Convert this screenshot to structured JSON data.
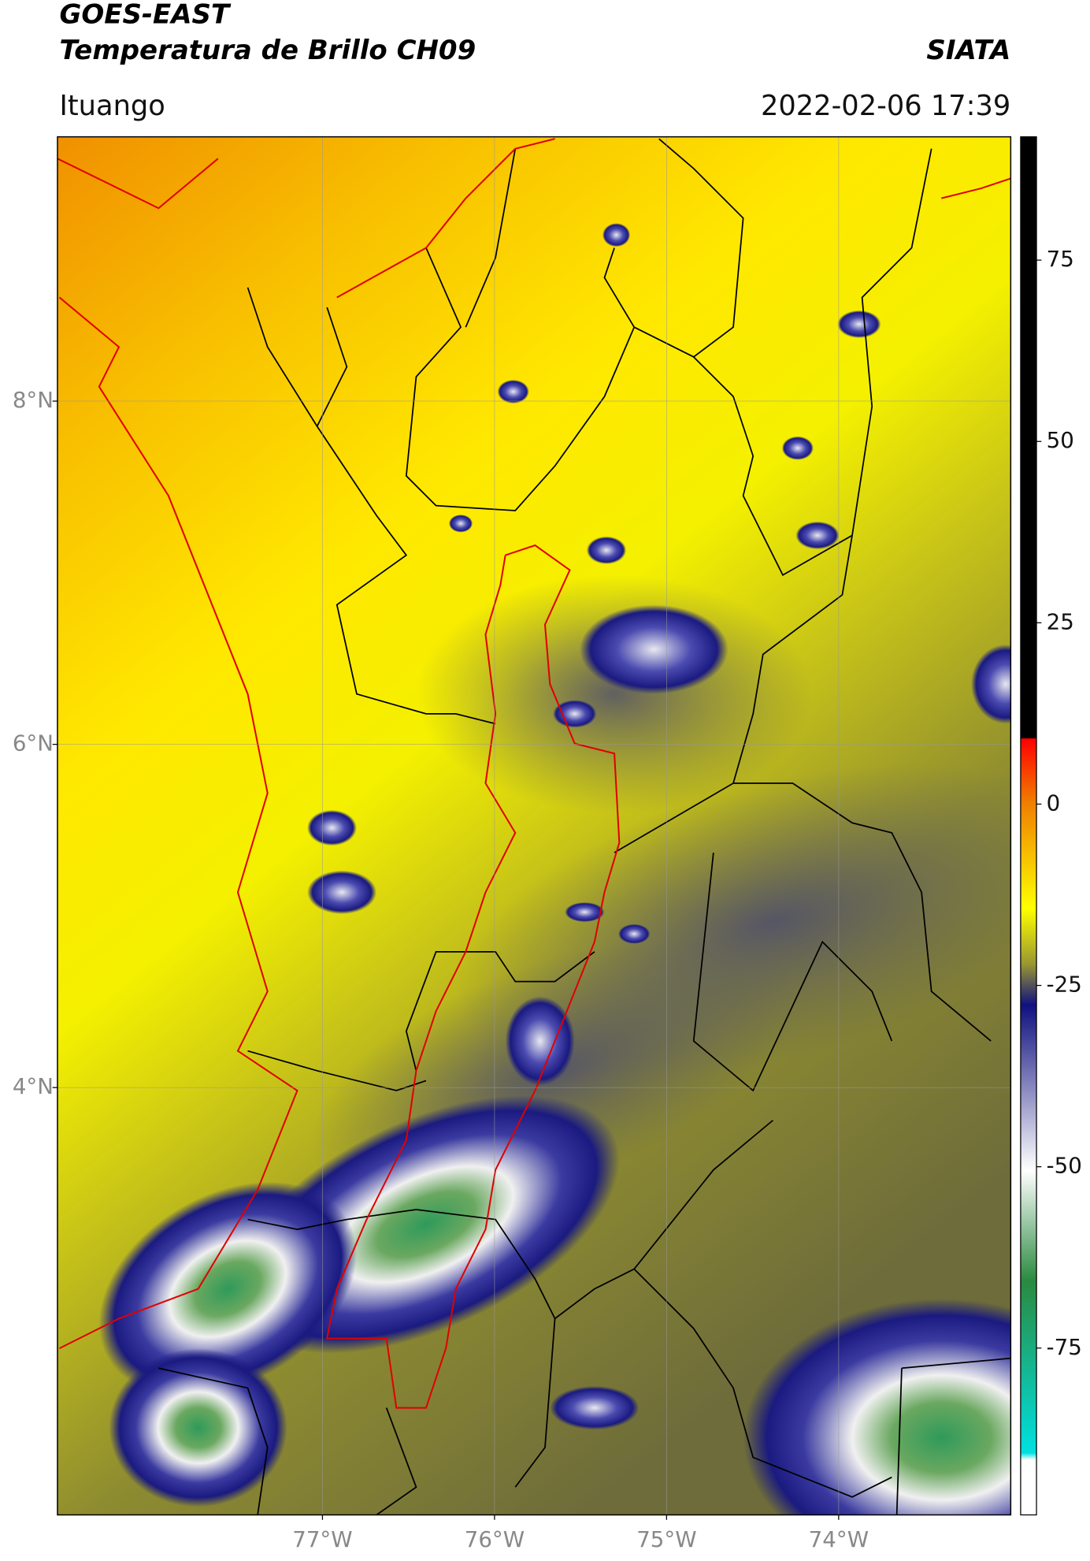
{
  "header": {
    "title": "GOES-EAST",
    "subtitle": "Temperatura de Brillo CH09",
    "source": "SIATA",
    "location": "Ituango",
    "datetime": "2022-02-06 17:39"
  },
  "map": {
    "type": "map",
    "xlim": [
      -78.54,
      -73.0
    ],
    "ylim": [
      1.51,
      9.54
    ],
    "xticks": [
      {
        "value": -77,
        "label": "77°W"
      },
      {
        "value": -76,
        "label": "76°W"
      },
      {
        "value": -75,
        "label": "75°W"
      },
      {
        "value": -74,
        "label": "74°W"
      }
    ],
    "yticks": [
      {
        "value": 8,
        "label": "8°N"
      },
      {
        "value": 6,
        "label": "6°N"
      },
      {
        "value": 4,
        "label": "4°N"
      }
    ],
    "grid": true
  },
  "colorbar": {
    "lim": [
      -98,
      92
    ],
    "ticks": [
      75,
      50,
      25,
      0,
      -25,
      -50,
      -75
    ]
  }
}
